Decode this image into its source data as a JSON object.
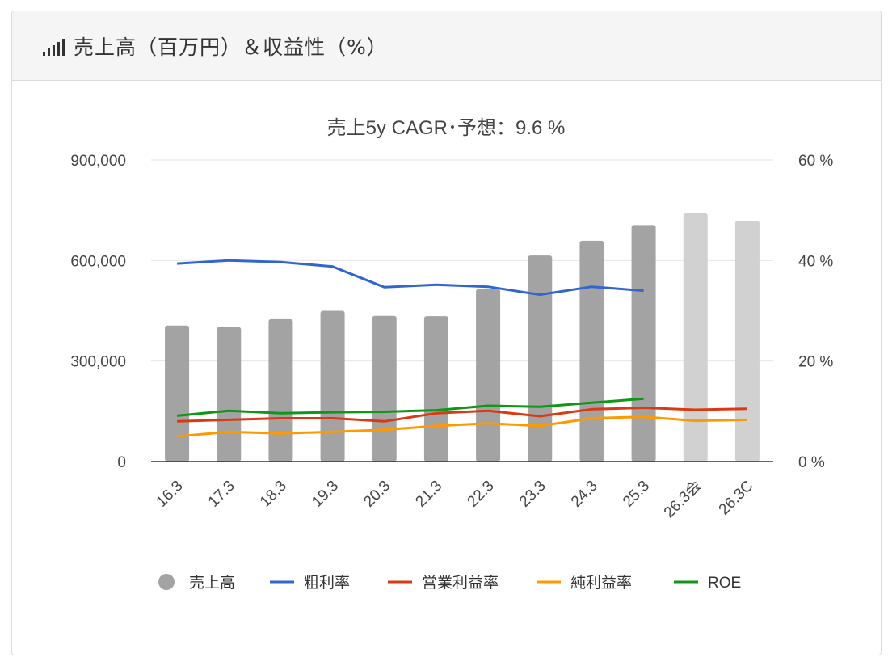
{
  "panel": {
    "title": "売上高（百万円）＆収益性（%）",
    "icon": "signal-bars-icon"
  },
  "chart_data": {
    "type": "bar",
    "title": "売上5y CAGR･予想：9.6 %",
    "categories": [
      "16.3",
      "17.3",
      "18.3",
      "19.3",
      "20.3",
      "21.3",
      "22.3",
      "23.3",
      "24.3",
      "25.3",
      "26.3会",
      "26.3C"
    ],
    "y_left": {
      "range": [
        0,
        900000
      ],
      "ticks": [
        "0",
        "300,000",
        "600,000",
        "900,000"
      ],
      "tick_values": [
        0,
        300000,
        600000,
        900000
      ]
    },
    "y_right": {
      "range": [
        0,
        60
      ],
      "ticks": [
        "0 %",
        "20 %",
        "40 %",
        "60 %"
      ],
      "tick_values": [
        0,
        20,
        40,
        60
      ]
    },
    "grid": true,
    "legend_position": "bottom",
    "bars": {
      "name": "売上高",
      "values": [
        406000,
        401000,
        425000,
        450000,
        435000,
        434000,
        515000,
        615000,
        659000,
        706000,
        741000,
        719000
      ],
      "colors": [
        "#a3a3a3",
        "#a3a3a3",
        "#a3a3a3",
        "#a3a3a3",
        "#a3a3a3",
        "#a3a3a3",
        "#a3a3a3",
        "#a3a3a3",
        "#a3a3a3",
        "#a3a3a3",
        "#d1d1d1",
        "#d1d1d1"
      ]
    },
    "series": [
      {
        "name": "粗利率",
        "color": "#3366cc",
        "axis": "right",
        "values": [
          39.4,
          40.0,
          39.7,
          38.8,
          34.7,
          35.2,
          34.8,
          33.2,
          34.8,
          34.0,
          null,
          null
        ]
      },
      {
        "name": "営業利益率",
        "color": "#dc3912",
        "axis": "right",
        "values": [
          8.0,
          8.3,
          8.6,
          8.6,
          8.0,
          9.6,
          10.1,
          9.0,
          10.4,
          10.7,
          10.3,
          10.5
        ]
      },
      {
        "name": "純利益率",
        "color": "#ff9900",
        "axis": "right",
        "values": [
          5.0,
          5.9,
          5.6,
          5.9,
          6.3,
          7.1,
          7.6,
          7.1,
          8.6,
          8.9,
          8.1,
          8.3
        ]
      },
      {
        "name": "ROE",
        "color": "#109618",
        "axis": "right",
        "values": [
          9.1,
          10.1,
          9.6,
          9.8,
          9.9,
          10.2,
          11.1,
          10.9,
          11.7,
          12.5,
          null,
          null
        ]
      }
    ]
  }
}
